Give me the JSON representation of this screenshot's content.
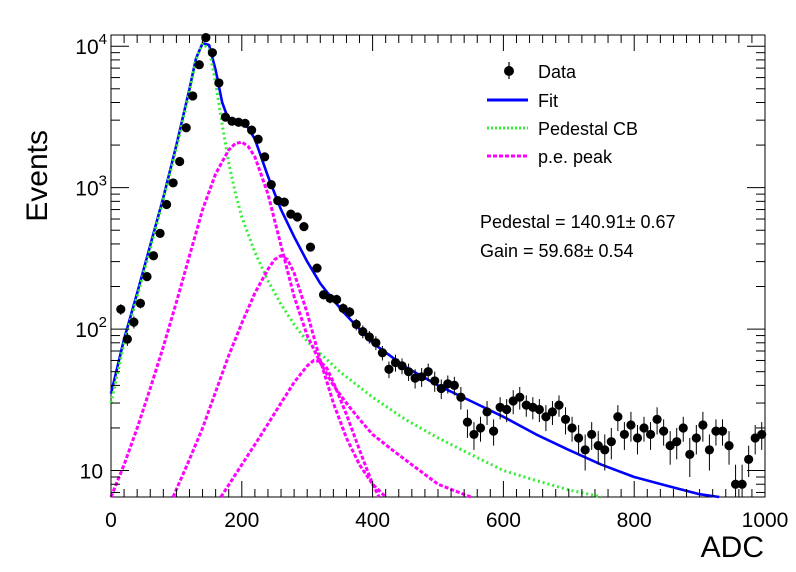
{
  "chart_data": {
    "type": "scatter",
    "xlabel": "ADC",
    "ylabel": "Events",
    "xlim": [
      0,
      1000
    ],
    "ylim": [
      6.5,
      12000
    ],
    "yscale": "log",
    "grid": false,
    "legend_position": "top-right",
    "x_ticks": [
      "0",
      "200",
      "400",
      "600",
      "800",
      "1000"
    ],
    "y_ticks": [
      {
        "value": 10,
        "base": "10",
        "exp": ""
      },
      {
        "value": 100,
        "base": "10",
        "exp": "2"
      },
      {
        "value": 1000,
        "base": "10",
        "exp": "3"
      },
      {
        "value": 10000,
        "base": "10",
        "exp": "4"
      }
    ],
    "legend": [
      {
        "label": "Data",
        "style": "marker",
        "color": "#000000"
      },
      {
        "label": "Fit",
        "style": "line",
        "color": "#0000ff"
      },
      {
        "label": "Pedestal CB",
        "style": "dotted",
        "color": "#33ee33"
      },
      {
        "label": "p.e. peak",
        "style": "dashed",
        "color": "#ff00ff"
      }
    ],
    "annotations": [
      "Pedestal = 140.91± 0.67",
      "Gain = 59.68± 0.54"
    ],
    "series": [
      {
        "name": "Data",
        "kind": "points",
        "color": "#000000",
        "x": [
          15,
          25,
          35,
          45,
          55,
          65,
          75,
          85,
          95,
          105,
          115,
          125,
          135,
          145,
          155,
          165,
          175,
          185,
          195,
          205,
          215,
          225,
          235,
          245,
          255,
          265,
          275,
          285,
          295,
          305,
          315,
          325,
          335,
          345,
          355,
          365,
          375,
          385,
          395,
          405,
          415,
          425,
          435,
          445,
          455,
          465,
          475,
          485,
          495,
          505,
          515,
          525,
          535,
          545,
          555,
          565,
          575,
          585,
          595,
          605,
          615,
          625,
          635,
          645,
          655,
          665,
          675,
          685,
          695,
          705,
          715,
          725,
          735,
          745,
          755,
          765,
          775,
          785,
          795,
          805,
          815,
          825,
          835,
          845,
          855,
          865,
          875,
          885,
          895,
          905,
          915,
          925,
          935,
          945,
          955,
          965,
          975,
          985,
          995
        ],
        "y": [
          138,
          85,
          112,
          152,
          235,
          330,
          475,
          760,
          1080,
          1530,
          2650,
          4450,
          7400,
          11500,
          9000,
          5500,
          3150,
          2950,
          2900,
          2850,
          2550,
          2200,
          1650,
          1050,
          810,
          790,
          650,
          620,
          530,
          380,
          270,
          175,
          165,
          162,
          140,
          132,
          108,
          96,
          88,
          80,
          68,
          52,
          58,
          55,
          50,
          45,
          46,
          50,
          43,
          38,
          41,
          40,
          33,
          22,
          18,
          20,
          26,
          19,
          28,
          27,
          31,
          33,
          29,
          28,
          27,
          24,
          26,
          29,
          23,
          20,
          17,
          14,
          18,
          15,
          14,
          16,
          24,
          18,
          21,
          17,
          20,
          18,
          23,
          19,
          15,
          16,
          20,
          13,
          17,
          21,
          14,
          19,
          19,
          15,
          8,
          8,
          12,
          17,
          18
        ],
        "y_err": [
          12,
          9,
          11,
          12,
          15,
          18,
          22,
          28,
          33,
          39,
          51,
          67,
          86,
          107,
          95,
          74,
          56,
          54,
          54,
          53,
          50,
          47,
          41,
          32,
          28,
          28,
          25,
          25,
          23,
          19,
          16,
          13,
          13,
          13,
          12,
          11,
          10,
          10,
          9,
          9,
          8,
          7,
          8,
          7,
          7,
          7,
          7,
          7,
          7,
          6,
          6,
          6,
          6,
          5,
          4,
          4,
          5,
          4,
          5,
          5,
          6,
          6,
          5,
          5,
          5,
          5,
          5,
          5,
          5,
          4,
          4,
          4,
          4,
          4,
          4,
          4,
          5,
          4,
          5,
          4,
          4,
          4,
          5,
          4,
          4,
          4,
          4,
          4,
          4,
          5,
          4,
          4,
          4,
          4,
          3,
          3,
          3,
          4,
          4
        ]
      },
      {
        "name": "Fit",
        "kind": "line",
        "color": "#0000ff",
        "x": [
          0,
          20,
          40,
          60,
          80,
          100,
          120,
          130,
          140,
          150,
          160,
          170,
          180,
          190,
          200,
          210,
          220,
          240,
          260,
          280,
          300,
          320,
          340,
          360,
          380,
          400,
          450,
          500,
          550,
          600,
          650,
          700,
          750,
          800,
          850,
          900,
          930
        ],
        "y": [
          35,
          85,
          180,
          390,
          850,
          2000,
          5000,
          8200,
          10500,
          10200,
          6800,
          4000,
          3000,
          2900,
          2850,
          2650,
          2200,
          1200,
          700,
          450,
          300,
          210,
          160,
          125,
          100,
          80,
          54,
          40,
          31,
          24,
          18,
          14,
          11,
          9,
          7.8,
          6.8,
          6.5
        ]
      },
      {
        "name": "Pedestal CB",
        "kind": "dotted",
        "color": "#33ee33",
        "x": [
          0,
          20,
          40,
          60,
          80,
          100,
          120,
          130,
          140,
          150,
          160,
          170,
          180,
          190,
          200,
          220,
          240,
          260,
          280,
          300,
          350,
          400,
          450,
          500,
          550,
          600,
          650,
          700,
          750
        ],
        "y": [
          30,
          80,
          170,
          370,
          820,
          1900,
          4800,
          8000,
          10500,
          9500,
          5500,
          2800,
          1500,
          920,
          620,
          350,
          220,
          150,
          108,
          82,
          50,
          33,
          23,
          17,
          13,
          10,
          8.5,
          7.3,
          6.5
        ]
      },
      {
        "name": "p.e. peak 1",
        "kind": "dashed",
        "color": "#ff00ff",
        "x": [
          0,
          20,
          40,
          60,
          80,
          100,
          120,
          140,
          160,
          180,
          190,
          200,
          210,
          220,
          240,
          260,
          280,
          300,
          320,
          340,
          360,
          380,
          400,
          430,
          460,
          500,
          550
        ],
        "y": [
          6.5,
          11,
          20,
          38,
          75,
          155,
          330,
          700,
          1250,
          1850,
          2050,
          2100,
          1950,
          1650,
          900,
          390,
          170,
          90,
          58,
          40,
          30,
          23,
          18,
          14,
          11,
          8,
          6.5
        ]
      },
      {
        "name": "p.e. peak 2",
        "kind": "dashed",
        "color": "#ff00ff",
        "x": [
          95,
          120,
          140,
          160,
          180,
          200,
          220,
          240,
          250,
          260,
          270,
          280,
          300,
          320,
          340,
          360,
          380,
          400,
          420
        ],
        "y": [
          6.5,
          12,
          20,
          36,
          65,
          110,
          180,
          265,
          310,
          330,
          310,
          250,
          130,
          60,
          30,
          17,
          11,
          8,
          6.5
        ]
      },
      {
        "name": "p.e. peak 3",
        "kind": "dashed",
        "color": "#ff00ff",
        "x": [
          168,
          200,
          230,
          260,
          280,
          300,
          310,
          320,
          330,
          340,
          360,
          380,
          400,
          410
        ],
        "y": [
          6.5,
          11,
          18,
          30,
          42,
          55,
          60,
          59,
          53,
          42,
          25,
          14,
          8,
          6.5
        ]
      }
    ]
  }
}
